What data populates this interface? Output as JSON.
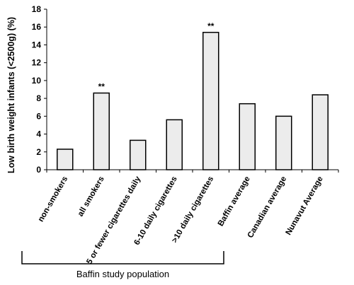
{
  "chart_data": {
    "type": "bar",
    "ylabel": "Low birth weight infants (<2500g) (%)",
    "ylim": [
      0,
      18
    ],
    "yticks": [
      0,
      2,
      4,
      6,
      8,
      10,
      12,
      14,
      16,
      18
    ],
    "categories": [
      "non-smokers",
      "all smokers",
      "5 or fewer cigarettes daily",
      "6-10 daily cigarettes",
      ">10 daily cigarettes",
      "Baffin average",
      "Canadian average",
      "Nunavut Average"
    ],
    "values": [
      2.3,
      8.6,
      3.3,
      5.6,
      15.4,
      7.4,
      6.0,
      8.4
    ],
    "annotations": [
      "",
      "**",
      "",
      "",
      "**",
      "",
      "",
      ""
    ],
    "group_bracket": {
      "label": "Baffin study population",
      "from_index": 0,
      "to_index": 4
    },
    "bar_color": "#ececec",
    "grid": false,
    "legend": "none"
  }
}
